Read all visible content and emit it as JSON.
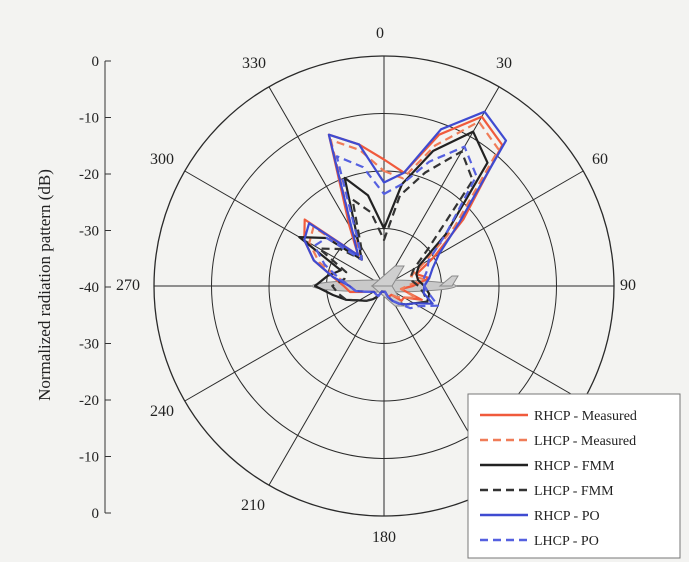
{
  "chart_data": {
    "type": "line",
    "subtype": "polar",
    "ylabel": "Normalized radiation pattern (dB)",
    "radial_range": [
      -40,
      0
    ],
    "radial_ticks": [
      0,
      -10,
      -20,
      -30,
      -40,
      -30,
      -20,
      -10,
      0
    ],
    "angle_ticks": [
      "0",
      "30",
      "60",
      "90",
      "180",
      "210",
      "240",
      "270",
      "300",
      "330"
    ],
    "grid": true,
    "legend_position": "bottom-right",
    "series": [
      {
        "name": "RHCP - Measured",
        "color": "#f05a3c",
        "dash": "solid",
        "theta": [
          0,
          10,
          20,
          30,
          40,
          50,
          60,
          70,
          80,
          90,
          100,
          110,
          120,
          130,
          140,
          150,
          160,
          170,
          180,
          190,
          200,
          210,
          220,
          230,
          240,
          250,
          260,
          270,
          280,
          290,
          300,
          310,
          320,
          330,
          340,
          350
        ],
        "r": [
          -18,
          -20,
          -12,
          -6,
          -8,
          -22,
          -30,
          -34,
          -32,
          -35,
          -37,
          -33,
          -36,
          -36,
          -38,
          -38,
          -38,
          -39,
          -39,
          -39,
          -39,
          -38,
          -38,
          -38,
          -38,
          -37,
          -34,
          -33,
          -31,
          -27,
          -24,
          -22,
          -33,
          -28,
          -12,
          -15
        ]
      },
      {
        "name": "LHCP - Measured",
        "color": "#f07c58",
        "dash": "dashed",
        "theta": [
          0,
          10,
          20,
          30,
          40,
          50,
          60,
          70,
          80,
          90,
          100,
          110,
          120,
          130,
          140,
          150,
          160,
          170,
          180,
          190,
          200,
          210,
          220,
          230,
          240,
          250,
          260,
          270,
          280,
          290,
          300,
          310,
          320,
          330,
          340,
          350
        ],
        "r": [
          -20,
          -21,
          -14,
          -7,
          -9,
          -24,
          -32,
          -35,
          -33,
          -36,
          -37,
          -34,
          -36,
          -37,
          -38,
          -38,
          -38,
          -39,
          -39,
          -39,
          -39,
          -38,
          -38,
          -38,
          -38,
          -37,
          -35,
          -34,
          -32,
          -28,
          -25,
          -24,
          -34,
          -29,
          -13,
          -16
        ]
      },
      {
        "name": "RHCP - FMM",
        "color": "#222222",
        "dash": "solid",
        "theta": [
          0,
          10,
          20,
          30,
          40,
          50,
          60,
          70,
          80,
          90,
          100,
          110,
          120,
          130,
          140,
          150,
          160,
          170,
          180,
          190,
          200,
          210,
          220,
          230,
          240,
          250,
          260,
          270,
          280,
          290,
          300,
          310,
          320,
          330,
          340,
          350
        ],
        "r": [
          -30,
          -22,
          -15,
          -9,
          -12,
          -26,
          -33,
          -34,
          -34,
          -33,
          -32,
          -32,
          -34,
          -35,
          -36,
          -37,
          -38,
          -39,
          -39,
          -39,
          -39,
          -38,
          -37,
          -36,
          -35,
          -33,
          -31,
          -28,
          -30,
          -32,
          -23,
          -27,
          -34,
          -31,
          -20,
          -24
        ]
      },
      {
        "name": "LHCP - FMM",
        "color": "#333333",
        "dash": "dashed",
        "theta": [
          0,
          10,
          20,
          30,
          40,
          50,
          60,
          70,
          80,
          90,
          100,
          110,
          120,
          130,
          140,
          150,
          160,
          170,
          180,
          190,
          200,
          210,
          220,
          230,
          240,
          250,
          260,
          270,
          280,
          290,
          300,
          310,
          320,
          330,
          340,
          350
        ],
        "r": [
          -32,
          -24,
          -19,
          -13,
          -16,
          -30,
          -34,
          -35,
          -35,
          -34,
          -33,
          -32,
          -34,
          -35,
          -36,
          -37,
          -38,
          -39,
          -39,
          -39,
          -39,
          -38,
          -37,
          -36,
          -35,
          -33,
          -32,
          -31,
          -33,
          -33,
          -27,
          -30,
          -34,
          -32,
          -24,
          -27
        ]
      },
      {
        "name": "RHCP - PO",
        "color": "#3f4bd1",
        "dash": "solid",
        "theta": [
          0,
          10,
          20,
          30,
          40,
          50,
          60,
          70,
          80,
          90,
          100,
          110,
          120,
          130,
          140,
          150,
          160,
          170,
          180,
          190,
          200,
          210,
          220,
          230,
          240,
          250,
          260,
          270,
          280,
          290,
          300,
          310,
          320,
          330,
          340,
          350
        ],
        "r": [
          -22,
          -20,
          -11,
          -5,
          -7,
          -23,
          -29,
          -31,
          -32,
          -33,
          -33,
          -31,
          -34,
          -35,
          -36,
          -37,
          -38,
          -39,
          -39,
          -39,
          -39,
          -38,
          -38,
          -38,
          -38,
          -37,
          -35,
          -34,
          -31,
          -27,
          -24,
          -23,
          -33,
          -29,
          -12,
          -15
        ]
      },
      {
        "name": "LHCP - PO",
        "color": "#5560e0",
        "dash": "dashed",
        "theta": [
          0,
          10,
          20,
          30,
          40,
          50,
          60,
          70,
          80,
          90,
          100,
          110,
          120,
          130,
          140,
          150,
          160,
          170,
          180,
          190,
          200,
          210,
          220,
          230,
          240,
          250,
          260,
          270,
          280,
          290,
          300,
          310,
          320,
          330,
          340,
          350
        ],
        "r": [
          -24,
          -22,
          -17,
          -12,
          -15,
          -26,
          -31,
          -32,
          -33,
          -33,
          -32,
          -30,
          -33,
          -34,
          -36,
          -37,
          -38,
          -39,
          -39,
          -39,
          -39,
          -38,
          -38,
          -38,
          -38,
          -37,
          -35,
          -34,
          -32,
          -29,
          -26,
          -27,
          -34,
          -31,
          -16,
          -19
        ]
      }
    ]
  }
}
